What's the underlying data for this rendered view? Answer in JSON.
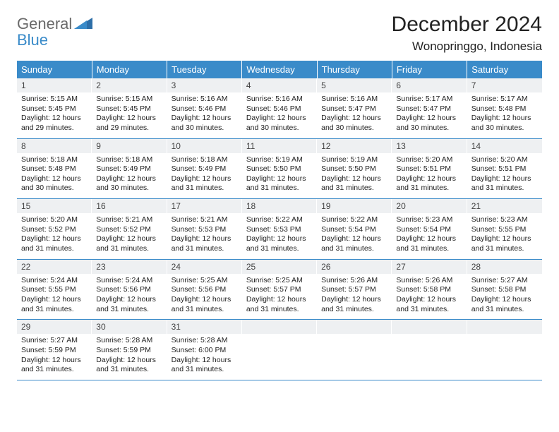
{
  "brand": {
    "general": "General",
    "blue": "Blue"
  },
  "title": "December 2024",
  "subtitle": "Wonopringgo, Indonesia",
  "days_of_week": [
    "Sunday",
    "Monday",
    "Tuesday",
    "Wednesday",
    "Thursday",
    "Friday",
    "Saturday"
  ],
  "colors": {
    "header_bar": "#3a8bc9",
    "daynum_bg": "#eef0f2",
    "rule": "#3a8bc9",
    "logo_gray": "#6a6a6a",
    "logo_blue": "#3a8bc9"
  },
  "weeks": [
    [
      {
        "n": "1",
        "sunrise": "Sunrise: 5:15 AM",
        "sunset": "Sunset: 5:45 PM",
        "d1": "Daylight: 12 hours",
        "d2": "and 29 minutes."
      },
      {
        "n": "2",
        "sunrise": "Sunrise: 5:15 AM",
        "sunset": "Sunset: 5:45 PM",
        "d1": "Daylight: 12 hours",
        "d2": "and 29 minutes."
      },
      {
        "n": "3",
        "sunrise": "Sunrise: 5:16 AM",
        "sunset": "Sunset: 5:46 PM",
        "d1": "Daylight: 12 hours",
        "d2": "and 30 minutes."
      },
      {
        "n": "4",
        "sunrise": "Sunrise: 5:16 AM",
        "sunset": "Sunset: 5:46 PM",
        "d1": "Daylight: 12 hours",
        "d2": "and 30 minutes."
      },
      {
        "n": "5",
        "sunrise": "Sunrise: 5:16 AM",
        "sunset": "Sunset: 5:47 PM",
        "d1": "Daylight: 12 hours",
        "d2": "and 30 minutes."
      },
      {
        "n": "6",
        "sunrise": "Sunrise: 5:17 AM",
        "sunset": "Sunset: 5:47 PM",
        "d1": "Daylight: 12 hours",
        "d2": "and 30 minutes."
      },
      {
        "n": "7",
        "sunrise": "Sunrise: 5:17 AM",
        "sunset": "Sunset: 5:48 PM",
        "d1": "Daylight: 12 hours",
        "d2": "and 30 minutes."
      }
    ],
    [
      {
        "n": "8",
        "sunrise": "Sunrise: 5:18 AM",
        "sunset": "Sunset: 5:48 PM",
        "d1": "Daylight: 12 hours",
        "d2": "and 30 minutes."
      },
      {
        "n": "9",
        "sunrise": "Sunrise: 5:18 AM",
        "sunset": "Sunset: 5:49 PM",
        "d1": "Daylight: 12 hours",
        "d2": "and 30 minutes."
      },
      {
        "n": "10",
        "sunrise": "Sunrise: 5:18 AM",
        "sunset": "Sunset: 5:49 PM",
        "d1": "Daylight: 12 hours",
        "d2": "and 31 minutes."
      },
      {
        "n": "11",
        "sunrise": "Sunrise: 5:19 AM",
        "sunset": "Sunset: 5:50 PM",
        "d1": "Daylight: 12 hours",
        "d2": "and 31 minutes."
      },
      {
        "n": "12",
        "sunrise": "Sunrise: 5:19 AM",
        "sunset": "Sunset: 5:50 PM",
        "d1": "Daylight: 12 hours",
        "d2": "and 31 minutes."
      },
      {
        "n": "13",
        "sunrise": "Sunrise: 5:20 AM",
        "sunset": "Sunset: 5:51 PM",
        "d1": "Daylight: 12 hours",
        "d2": "and 31 minutes."
      },
      {
        "n": "14",
        "sunrise": "Sunrise: 5:20 AM",
        "sunset": "Sunset: 5:51 PM",
        "d1": "Daylight: 12 hours",
        "d2": "and 31 minutes."
      }
    ],
    [
      {
        "n": "15",
        "sunrise": "Sunrise: 5:20 AM",
        "sunset": "Sunset: 5:52 PM",
        "d1": "Daylight: 12 hours",
        "d2": "and 31 minutes."
      },
      {
        "n": "16",
        "sunrise": "Sunrise: 5:21 AM",
        "sunset": "Sunset: 5:52 PM",
        "d1": "Daylight: 12 hours",
        "d2": "and 31 minutes."
      },
      {
        "n": "17",
        "sunrise": "Sunrise: 5:21 AM",
        "sunset": "Sunset: 5:53 PM",
        "d1": "Daylight: 12 hours",
        "d2": "and 31 minutes."
      },
      {
        "n": "18",
        "sunrise": "Sunrise: 5:22 AM",
        "sunset": "Sunset: 5:53 PM",
        "d1": "Daylight: 12 hours",
        "d2": "and 31 minutes."
      },
      {
        "n": "19",
        "sunrise": "Sunrise: 5:22 AM",
        "sunset": "Sunset: 5:54 PM",
        "d1": "Daylight: 12 hours",
        "d2": "and 31 minutes."
      },
      {
        "n": "20",
        "sunrise": "Sunrise: 5:23 AM",
        "sunset": "Sunset: 5:54 PM",
        "d1": "Daylight: 12 hours",
        "d2": "and 31 minutes."
      },
      {
        "n": "21",
        "sunrise": "Sunrise: 5:23 AM",
        "sunset": "Sunset: 5:55 PM",
        "d1": "Daylight: 12 hours",
        "d2": "and 31 minutes."
      }
    ],
    [
      {
        "n": "22",
        "sunrise": "Sunrise: 5:24 AM",
        "sunset": "Sunset: 5:55 PM",
        "d1": "Daylight: 12 hours",
        "d2": "and 31 minutes."
      },
      {
        "n": "23",
        "sunrise": "Sunrise: 5:24 AM",
        "sunset": "Sunset: 5:56 PM",
        "d1": "Daylight: 12 hours",
        "d2": "and 31 minutes."
      },
      {
        "n": "24",
        "sunrise": "Sunrise: 5:25 AM",
        "sunset": "Sunset: 5:56 PM",
        "d1": "Daylight: 12 hours",
        "d2": "and 31 minutes."
      },
      {
        "n": "25",
        "sunrise": "Sunrise: 5:25 AM",
        "sunset": "Sunset: 5:57 PM",
        "d1": "Daylight: 12 hours",
        "d2": "and 31 minutes."
      },
      {
        "n": "26",
        "sunrise": "Sunrise: 5:26 AM",
        "sunset": "Sunset: 5:57 PM",
        "d1": "Daylight: 12 hours",
        "d2": "and 31 minutes."
      },
      {
        "n": "27",
        "sunrise": "Sunrise: 5:26 AM",
        "sunset": "Sunset: 5:58 PM",
        "d1": "Daylight: 12 hours",
        "d2": "and 31 minutes."
      },
      {
        "n": "28",
        "sunrise": "Sunrise: 5:27 AM",
        "sunset": "Sunset: 5:58 PM",
        "d1": "Daylight: 12 hours",
        "d2": "and 31 minutes."
      }
    ],
    [
      {
        "n": "29",
        "sunrise": "Sunrise: 5:27 AM",
        "sunset": "Sunset: 5:59 PM",
        "d1": "Daylight: 12 hours",
        "d2": "and 31 minutes."
      },
      {
        "n": "30",
        "sunrise": "Sunrise: 5:28 AM",
        "sunset": "Sunset: 5:59 PM",
        "d1": "Daylight: 12 hours",
        "d2": "and 31 minutes."
      },
      {
        "n": "31",
        "sunrise": "Sunrise: 5:28 AM",
        "sunset": "Sunset: 6:00 PM",
        "d1": "Daylight: 12 hours",
        "d2": "and 31 minutes."
      },
      {
        "empty": true
      },
      {
        "empty": true
      },
      {
        "empty": true
      },
      {
        "empty": true
      }
    ]
  ]
}
